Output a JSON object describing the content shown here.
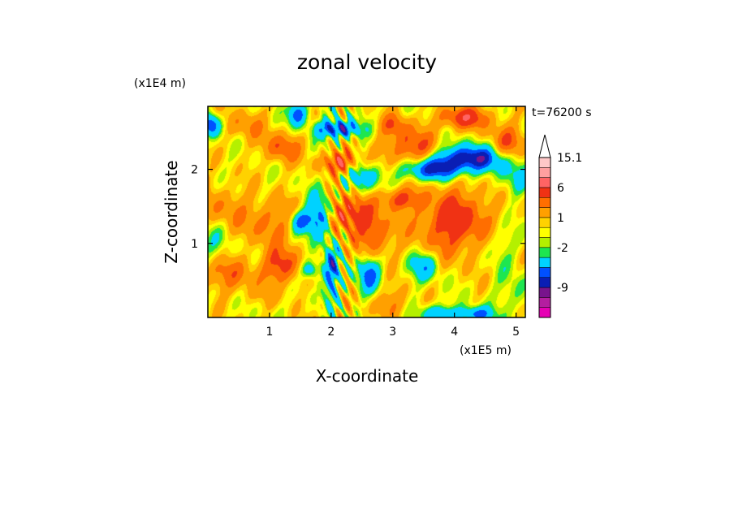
{
  "chart_data": {
    "type": "heatmap",
    "title": "zonal velocity",
    "xlabel": "X-coordinate",
    "ylabel": "Z-coordinate",
    "x_scale_label": "(x1E5 m)",
    "y_scale_label": "(x1E4 m)",
    "time_label": "t=76200 s",
    "x_range": [
      0,
      5.15
    ],
    "y_range": [
      0,
      2.85
    ],
    "x_ticks": [
      {
        "value": 1,
        "label": "1"
      },
      {
        "value": 2,
        "label": "2"
      },
      {
        "value": 3,
        "label": "3"
      },
      {
        "value": 4,
        "label": "4"
      },
      {
        "value": 5,
        "label": "5"
      }
    ],
    "y_ticks": [
      {
        "value": 1,
        "label": "1"
      },
      {
        "value": 2,
        "label": "2"
      }
    ],
    "colorbar": {
      "colors": [
        "#e600b4",
        "#b41ea0",
        "#78148c",
        "#0a1eb4",
        "#0050ff",
        "#00d2ff",
        "#1ee650",
        "#b4f000",
        "#ffff00",
        "#ffd200",
        "#ffa000",
        "#ff6e00",
        "#f03214",
        "#ff6464",
        "#ffa0a0",
        "#ffc8c8"
      ],
      "top_arrow": true,
      "labels": [
        {
          "value": "15.1",
          "index": 15
        },
        {
          "value": "6",
          "index": 12
        },
        {
          "value": "1",
          "index": 9
        },
        {
          "value": "-2",
          "index": 6
        },
        {
          "value": "-9",
          "index": 2
        }
      ]
    },
    "field_blobs": [
      {
        "x": 0.3,
        "y": 0.6,
        "rx": 0.5,
        "ry": 0.25,
        "v": 4
      },
      {
        "x": 0.2,
        "y": 1.5,
        "rx": 0.4,
        "ry": 0.3,
        "v": 3
      },
      {
        "x": 0.05,
        "y": 1.0,
        "rx": 0.35,
        "ry": 0.35,
        "v": -2
      },
      {
        "x": 0.05,
        "y": 2.6,
        "rx": 0.15,
        "ry": 0.15,
        "v": -8
      },
      {
        "x": 0.6,
        "y": 2.6,
        "rx": 0.35,
        "ry": 0.2,
        "v": 3
      },
      {
        "x": 1.2,
        "y": 2.3,
        "rx": 0.3,
        "ry": 0.2,
        "v": 5
      },
      {
        "x": 1.0,
        "y": 1.3,
        "rx": 0.45,
        "ry": 0.3,
        "v": 4
      },
      {
        "x": 1.2,
        "y": 0.7,
        "rx": 0.3,
        "ry": 0.25,
        "v": 6
      },
      {
        "x": 1.45,
        "y": 2.75,
        "rx": 0.15,
        "ry": 0.15,
        "v": -8
      },
      {
        "x": 2.1,
        "y": 2.55,
        "rx": 0.35,
        "ry": 0.12,
        "v": -9
      },
      {
        "x": 1.5,
        "y": 1.3,
        "rx": 0.18,
        "ry": 0.15,
        "v": -7
      },
      {
        "x": 1.65,
        "y": 0.65,
        "rx": 0.15,
        "ry": 0.12,
        "v": -6
      },
      {
        "x": 1.8,
        "y": 1.35,
        "rx": 0.18,
        "ry": 0.3,
        "v": -8
      },
      {
        "x": 2.0,
        "y": 0.6,
        "rx": 0.12,
        "ry": 0.35,
        "v": -7
      },
      {
        "x": 2.3,
        "y": 1.4,
        "rx": 0.35,
        "ry": 0.25,
        "v": 7
      },
      {
        "x": 2.15,
        "y": 2.1,
        "rx": 0.3,
        "ry": 0.15,
        "v": 7
      },
      {
        "x": 2.5,
        "y": 1.9,
        "rx": 0.35,
        "ry": 0.2,
        "v": -4
      },
      {
        "x": 2.6,
        "y": 0.6,
        "rx": 0.18,
        "ry": 0.25,
        "v": -7
      },
      {
        "x": 2.7,
        "y": 1.1,
        "rx": 0.3,
        "ry": 0.3,
        "v": 5
      },
      {
        "x": 2.95,
        "y": 0.2,
        "rx": 0.3,
        "ry": 0.2,
        "v": 3
      },
      {
        "x": 3.3,
        "y": 2.3,
        "rx": 0.4,
        "ry": 0.25,
        "v": 6
      },
      {
        "x": 3.0,
        "y": 2.6,
        "rx": 0.25,
        "ry": 0.15,
        "v": 4
      },
      {
        "x": 3.6,
        "y": 2.0,
        "rx": 0.45,
        "ry": 0.15,
        "v": -8
      },
      {
        "x": 4.25,
        "y": 2.15,
        "rx": 0.55,
        "ry": 0.18,
        "v": -10
      },
      {
        "x": 4.15,
        "y": 2.7,
        "rx": 0.4,
        "ry": 0.15,
        "v": 7
      },
      {
        "x": 4.85,
        "y": 2.35,
        "rx": 0.3,
        "ry": 0.25,
        "v": 5
      },
      {
        "x": 4.0,
        "y": 1.3,
        "rx": 0.6,
        "ry": 0.45,
        "v": 7
      },
      {
        "x": 4.7,
        "y": 1.0,
        "rx": 0.35,
        "ry": 0.3,
        "v": -2
      },
      {
        "x": 3.5,
        "y": 0.7,
        "rx": 0.25,
        "ry": 0.2,
        "v": -5
      },
      {
        "x": 3.75,
        "y": 0.05,
        "rx": 0.3,
        "ry": 0.12,
        "v": -6
      },
      {
        "x": 4.35,
        "y": 0.05,
        "rx": 0.25,
        "ry": 0.1,
        "v": -7
      },
      {
        "x": 5.0,
        "y": 0.3,
        "rx": 0.3,
        "ry": 0.3,
        "v": -2
      },
      {
        "x": 4.95,
        "y": 1.9,
        "rx": 0.3,
        "ry": 0.25,
        "v": -3
      },
      {
        "x": 0.9,
        "y": 0.3,
        "rx": 0.4,
        "ry": 0.15,
        "v": 1
      },
      {
        "x": 3.1,
        "y": 1.6,
        "rx": 0.3,
        "ry": 0.15,
        "v": 6
      }
    ]
  }
}
